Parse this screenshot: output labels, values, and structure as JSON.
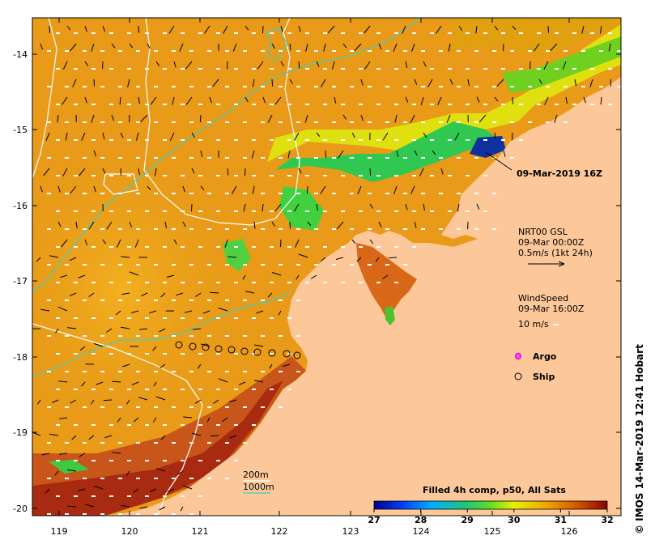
{
  "axes": {
    "x_ticks": [
      "119",
      "120",
      "121",
      "122",
      "123",
      "124",
      "125",
      "126"
    ],
    "y_ticks": [
      "-14",
      "-15",
      "-16",
      "-17",
      "-18",
      "-19",
      "-20"
    ]
  },
  "labels": {
    "date_annotation": "09-Mar-2019 16Z",
    "current_title": "NRT00 GSL",
    "current_time": "09-Mar 00:00Z",
    "current_scale": "0.5m/s (1kt 24h)",
    "wind_title": "WindSpeed",
    "wind_time": "09-Mar 16:00Z",
    "wind_scale": "10 m/s",
    "argo_label": "Argo",
    "ship_label": "Ship",
    "contour_200": "200m",
    "contour_1000": "1000m",
    "colorbar_title": "Filled 4h comp, p50, All Sats",
    "credit": "© IMOS 14-Mar-2019 12:41 Hobart"
  },
  "colorbar": {
    "ticks": [
      "27",
      "28",
      "29",
      "30",
      "31",
      "32"
    ],
    "colors": [
      "#00008b",
      "#0050ff",
      "#00c0ff",
      "#20d080",
      "#40e020",
      "#e0f000",
      "#f0a000",
      "#d05000",
      "#8b0000"
    ]
  },
  "colors": {
    "land": "#fcc89a",
    "sea_warm": "#e89a18",
    "sea_hot": "#c05010",
    "sea_cool": "#50c830",
    "contour_200": "#40d0c0",
    "contour_1000": "#ffffff"
  }
}
